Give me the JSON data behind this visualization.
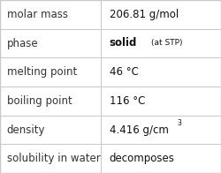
{
  "rows": [
    {
      "label": "molar mass",
      "value": "206.81 g/mol",
      "value_extra": null,
      "superscript": null
    },
    {
      "label": "phase",
      "value": "solid",
      "value_extra": "(at STP)",
      "superscript": null
    },
    {
      "label": "melting point",
      "value": "46 °C",
      "value_extra": null,
      "superscript": null
    },
    {
      "label": "boiling point",
      "value": "116 °C",
      "value_extra": null,
      "superscript": null
    },
    {
      "label": "density",
      "value": "4.416 g/cm",
      "value_extra": null,
      "superscript": "3"
    },
    {
      "label": "solubility in water",
      "value": "decomposes",
      "value_extra": null,
      "superscript": null
    }
  ],
  "col_split": 0.455,
  "background_color": "#ffffff",
  "line_color": "#c8c8c8",
  "label_fontsize": 8.5,
  "value_fontsize": 8.5,
  "extra_fontsize": 6.5,
  "super_fontsize": 5.5,
  "label_color": "#333333",
  "value_color": "#111111",
  "font_family": "DejaVu Sans",
  "fig_width": 2.5,
  "fig_height": 1.96,
  "dpi": 100
}
